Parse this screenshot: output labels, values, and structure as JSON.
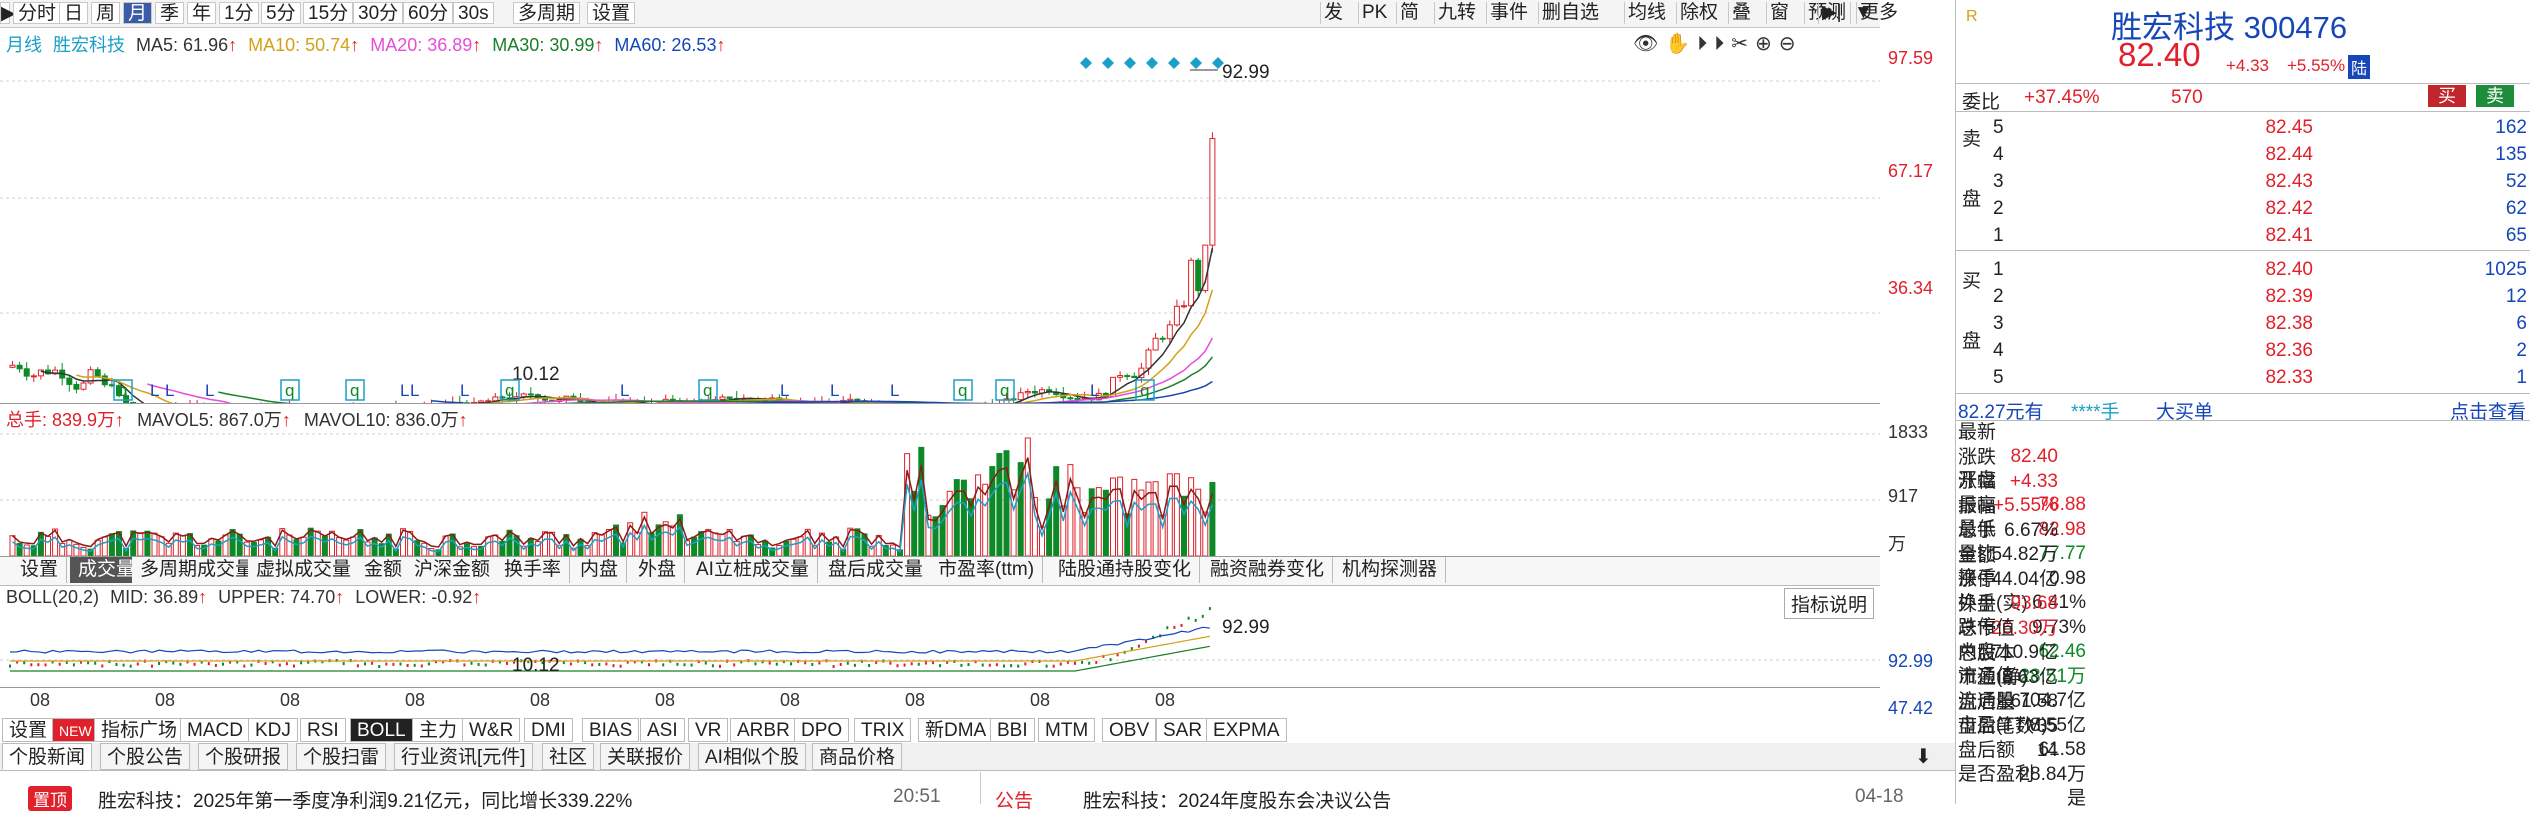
{
  "toolbar": {
    "left": [
      "分时",
      "日",
      "周",
      "月",
      "季",
      "年",
      "1分",
      "5分",
      "15分",
      "30分",
      "60分",
      "30s",
      "多周期",
      "设置"
    ],
    "selected": "月",
    "right": [
      "发",
      "PK",
      "简",
      "九转",
      "事件",
      "删自选",
      "均线",
      "除权",
      "叠",
      "窗",
      "预测",
      "更多"
    ]
  },
  "main_chart": {
    "legend": {
      "period": "月线",
      "name": "胜宏科技",
      "ma5": "MA5: 61.96",
      "ma10": "MA10: 50.74",
      "ma20": "MA20: 36.89",
      "ma30": "MA30: 30.99",
      "ma60": "MA60: 26.53"
    },
    "y_ticks": [
      "97.59",
      "67.17",
      "36.34"
    ],
    "high_label": "92.99",
    "low_label": "10.12",
    "markers": [
      "q",
      "L",
      "L",
      "L",
      "q",
      "q",
      "L",
      "L",
      "L",
      "q",
      "L",
      "q",
      "L",
      "L",
      "L",
      "q",
      "q",
      "L",
      "q"
    ]
  },
  "volume_chart": {
    "legend": {
      "total": "总手: 839.9万",
      "mavol5": "MAVOL5: 867.0万",
      "mavol10": "MAVOL10: 836.0万"
    },
    "y_ticks": [
      "1833",
      "917"
    ],
    "unit": "万"
  },
  "indicator_tabs": [
    "设置",
    "成交量",
    "多周期成交量",
    "虚拟成交量",
    "金额",
    "沪深金额",
    "换手率",
    "内盘",
    "外盘",
    "AI立桩成交量",
    "盘后成交量",
    "市盈率(ttm)",
    "陆股通持股变化",
    "融资融券变化",
    "机构探测器"
  ],
  "indicator_tab_selected": "成交量",
  "boll_chart": {
    "legend": {
      "name": "BOLL(20,2)",
      "mid": "MID: 36.89",
      "upper": "UPPER: 74.70",
      "lower": "LOWER: -0.92"
    },
    "y_ticks": [
      "92.99",
      "47.42"
    ],
    "high_label": "92.99",
    "low_label": "10.12",
    "help_button": "指标说明"
  },
  "x_axis": [
    "08",
    "08",
    "08",
    "08",
    "08",
    "08",
    "08",
    "08",
    "08",
    "08"
  ],
  "bottom_tabs": [
    "设置",
    "NEW",
    "指标广场",
    "MACD",
    "KDJ",
    "RSI",
    "BOLL",
    "主力",
    "W&R",
    "DMI",
    "BIAS",
    "ASI",
    "VR",
    "ARBR",
    "DPO",
    "TRIX",
    "新DMA",
    "BBI",
    "MTM",
    "OBV",
    "SAR",
    "EXPMA"
  ],
  "bottom_tab_selected": "BOLL",
  "news_tabs": [
    "个股新闻",
    "个股公告",
    "个股研报",
    "个股扫雷",
    "行业资讯[元件]",
    "社区",
    "关联报价",
    "AI相似个股",
    "商品价格"
  ],
  "news": [
    {
      "tag": "置顶",
      "text": "胜宏科技：2025年第一季度净利润9.21亿元，同比增长339.22%",
      "time": "20:51"
    },
    {
      "tag": "公告",
      "text": "胜宏科技：2024年度股东会决议公告",
      "time": "04-18"
    }
  ],
  "quote": {
    "r_badge": "R",
    "name": "胜宏科技",
    "code": "300476",
    "price": "82.40",
    "change": "+4.33",
    "pct": "+5.55%",
    "tag": "陆",
    "weibi_label": "委比",
    "weibi": "+37.45%",
    "weicha": "570",
    "buy_btn": "买",
    "sell_btn": "卖",
    "sell_side_label": "卖盘",
    "buy_side_label": "买盘",
    "asks": [
      {
        "n": "5",
        "p": "82.45",
        "v": "162"
      },
      {
        "n": "4",
        "p": "82.44",
        "v": "135"
      },
      {
        "n": "3",
        "p": "82.43",
        "v": "52"
      },
      {
        "n": "2",
        "p": "82.42",
        "v": "62"
      },
      {
        "n": "1",
        "p": "82.41",
        "v": "65"
      }
    ],
    "bids": [
      {
        "n": "1",
        "p": "82.40",
        "v": "1025"
      },
      {
        "n": "2",
        "p": "82.39",
        "v": "12"
      },
      {
        "n": "3",
        "p": "82.38",
        "v": "6"
      },
      {
        "n": "4",
        "p": "82.36",
        "v": "2"
      },
      {
        "n": "5",
        "p": "82.33",
        "v": "1"
      }
    ],
    "big_order": {
      "amount": "82.27元有",
      "hands": "****手",
      "label": "大买单",
      "link": "点击查看"
    },
    "stats": [
      [
        "最新",
        "82.40",
        "red",
        "开盘",
        "78.88",
        "red"
      ],
      [
        "涨跌",
        "+4.33",
        "red",
        "最高",
        "82.98",
        "red"
      ],
      [
        "涨幅",
        "+5.55%",
        "red",
        "最低",
        "77.77",
        "green"
      ],
      [
        "振幅",
        "6.67%",
        "dark",
        "量比",
        "0.98",
        "dark"
      ],
      [
        "总手",
        "54.82万",
        "dark",
        "换手",
        "6.41%",
        "dark"
      ],
      [
        "金额",
        "44.04亿",
        "dark",
        "换手(实)",
        "9.73%",
        "dark"
      ],
      [
        "涨停",
        "93.68",
        "red",
        "跌停",
        "62.46",
        "green"
      ],
      [
        "外盘",
        "26.30万",
        "red",
        "内盘",
        "28.51万",
        "green"
      ],
      [
        "总市值",
        "710.9亿",
        "dark",
        "流通值",
        "704.7亿",
        "dark"
      ],
      [
        "总股本",
        "8.63亿",
        "dark",
        "流通股",
        "8.55亿",
        "dark"
      ],
      [
        "市盈(静)",
        "61.58",
        "dark",
        "市盈(TTM)",
        "61.58",
        "dark"
      ],
      [
        "盘后量",
        "35",
        "dark",
        "盘后额",
        "28.84万",
        "dark"
      ],
      [
        "盘后笔数",
        "14",
        "dark",
        "是否盈利",
        "是",
        "dark"
      ]
    ]
  },
  "colors": {
    "up": "#e0202a",
    "down": "#0d8a27",
    "ma5": "#333333",
    "ma10": "#d4a017",
    "ma20": "#e64dd9",
    "ma30": "#1a7f2a",
    "ma60": "#1646b8"
  }
}
